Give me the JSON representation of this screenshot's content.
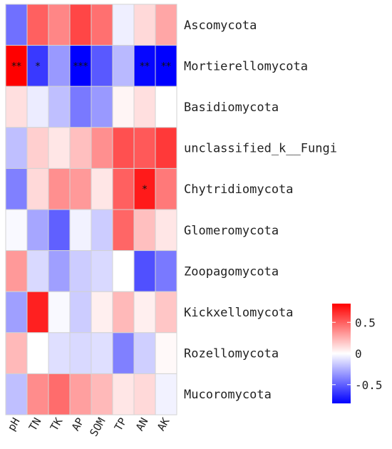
{
  "chart_data": {
    "type": "heatmap",
    "title": "",
    "columns": [
      "pH",
      "TN",
      "TK",
      "AP",
      "SOM",
      "TP",
      "AN",
      "AK"
    ],
    "rows": [
      "Ascomycota",
      "Mortierellomycota",
      "Basidiomycota",
      "unclassified_k__Fungi",
      "Chytridiomycota",
      "Glomeromycota",
      "Zoopagomycota",
      "Kickxellomycota",
      "Rozellomycota",
      "Mucoromycota"
    ],
    "values": [
      [
        -0.45,
        0.5,
        0.38,
        0.58,
        0.45,
        -0.05,
        0.12,
        0.28
      ],
      [
        0.82,
        -0.62,
        -0.32,
        -0.82,
        -0.52,
        -0.22,
        -0.78,
        -0.8
      ],
      [
        0.1,
        -0.06,
        -0.2,
        -0.42,
        -0.32,
        0.03,
        0.1,
        0.0
      ],
      [
        -0.2,
        0.15,
        0.08,
        0.2,
        0.35,
        0.55,
        0.52,
        0.62
      ],
      [
        -0.4,
        0.12,
        0.35,
        0.32,
        0.08,
        0.5,
        0.72,
        0.42
      ],
      [
        -0.02,
        -0.28,
        -0.5,
        -0.04,
        -0.16,
        0.48,
        0.2,
        0.08
      ],
      [
        0.32,
        -0.12,
        -0.3,
        -0.16,
        -0.12,
        0.0,
        -0.55,
        -0.42
      ],
      [
        -0.3,
        0.7,
        -0.02,
        -0.16,
        0.05,
        0.22,
        0.05,
        0.18
      ],
      [
        0.22,
        0.0,
        -0.1,
        -0.12,
        -0.1,
        -0.4,
        -0.15,
        0.02
      ],
      [
        -0.2,
        0.36,
        0.46,
        0.3,
        0.22,
        0.08,
        0.12,
        -0.04
      ]
    ],
    "significance": [
      [
        "",
        "",
        "",
        "",
        "",
        "",
        "",
        ""
      ],
      [
        "**",
        "*",
        "",
        "***",
        "",
        "",
        "**",
        "**"
      ],
      [
        "",
        "",
        "",
        "",
        "",
        "",
        "",
        ""
      ],
      [
        "",
        "",
        "",
        "",
        "",
        "",
        "",
        ""
      ],
      [
        "",
        "",
        "",
        "",
        "",
        "",
        "*",
        ""
      ],
      [
        "",
        "",
        "",
        "",
        "",
        "",
        "",
        ""
      ],
      [
        "",
        "",
        "",
        "",
        "",
        "",
        "",
        ""
      ],
      [
        "",
        "",
        "",
        "",
        "",
        "",
        "",
        ""
      ],
      [
        "",
        "",
        "",
        "",
        "",
        "",
        "",
        ""
      ],
      [
        "",
        "",
        "",
        "",
        "",
        "",
        "",
        ""
      ]
    ],
    "color_scale": {
      "min": -0.8,
      "max": 0.8,
      "low_color": "#0000ff",
      "mid_color": "#ffffff",
      "high_color": "#ff0000"
    },
    "legend": {
      "ticks": [
        0.5,
        0,
        -0.5
      ],
      "tick_labels": [
        "0.5",
        "0",
        "-0.5"
      ],
      "placement": "right"
    },
    "grid": true
  }
}
